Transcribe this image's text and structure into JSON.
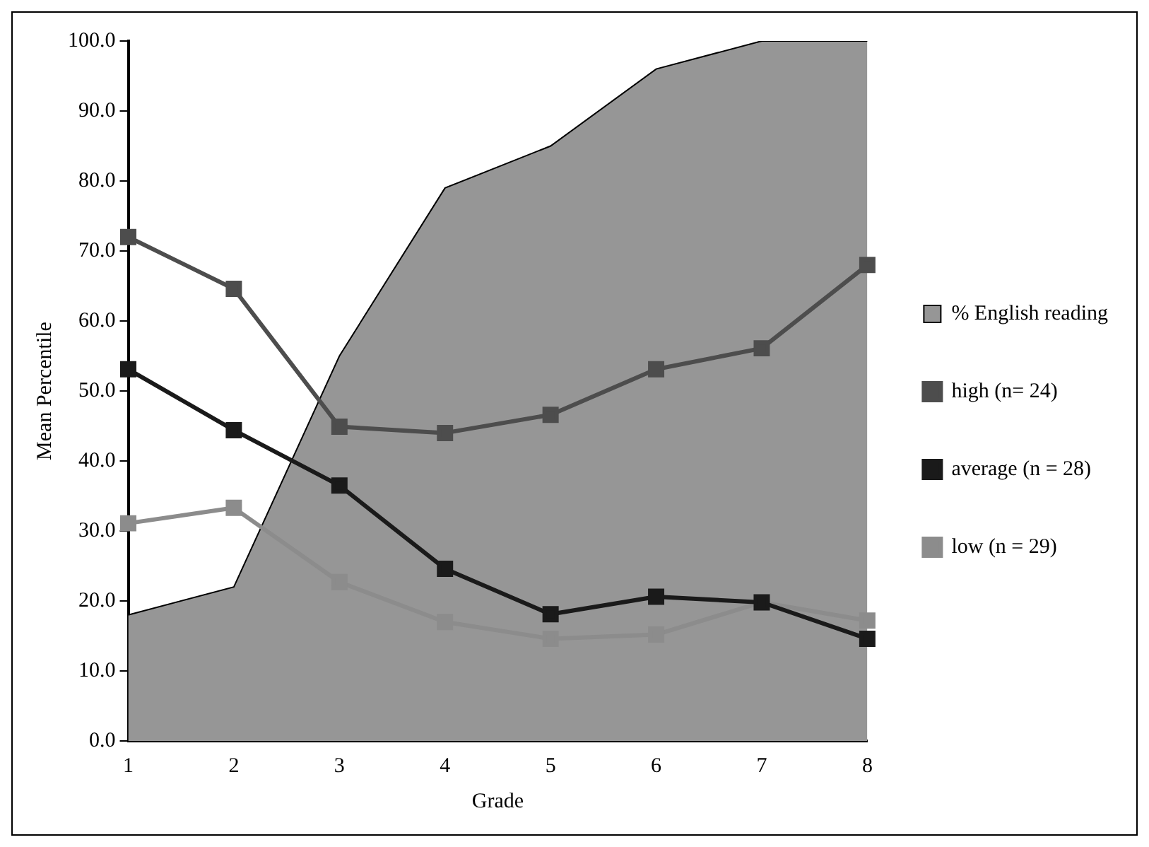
{
  "chart_data": {
    "type": "line",
    "xlabel": "Grade",
    "ylabel": "Mean Percentile",
    "categories": [
      "1",
      "2",
      "3",
      "4",
      "5",
      "6",
      "7",
      "8"
    ],
    "series": [
      {
        "name": "% English reading",
        "type": "area",
        "color": "#969696",
        "values": [
          18,
          22,
          55,
          79,
          85,
          96,
          100,
          100
        ]
      },
      {
        "name": "high (n= 24)",
        "color": "#4d4d4d",
        "marker": "square",
        "values": [
          72,
          64.6,
          44.9,
          44,
          46.6,
          53.1,
          56.1,
          68
        ]
      },
      {
        "name": "average (n = 28)",
        "color": "#1a1a1a",
        "marker": "square",
        "values": [
          53.1,
          44.4,
          36.5,
          24.6,
          18.1,
          20.6,
          19.8,
          14.6
        ]
      },
      {
        "name": "low (n = 29)",
        "color": "#8c8c8c",
        "marker": "square",
        "values": [
          31.1,
          33.3,
          22.7,
          17,
          14.6,
          15.2,
          19.8,
          17.2
        ]
      }
    ],
    "ylim": [
      0,
      100
    ],
    "yticks": [
      {
        "value": 0,
        "label": "0.0"
      },
      {
        "value": 10,
        "label": "10.0"
      },
      {
        "value": 20,
        "label": "20.0"
      },
      {
        "value": 30,
        "label": "30.0"
      },
      {
        "value": 40,
        "label": "40.0"
      },
      {
        "value": 50,
        "label": "50.0"
      },
      {
        "value": 60,
        "label": "60.0"
      },
      {
        "value": 70,
        "label": "70.0"
      },
      {
        "value": 80,
        "label": "80.0"
      },
      {
        "value": 90,
        "label": "90.0"
      },
      {
        "value": 100,
        "label": "100.0"
      }
    ],
    "grid": false,
    "legend": "right",
    "line_style": "solid"
  }
}
